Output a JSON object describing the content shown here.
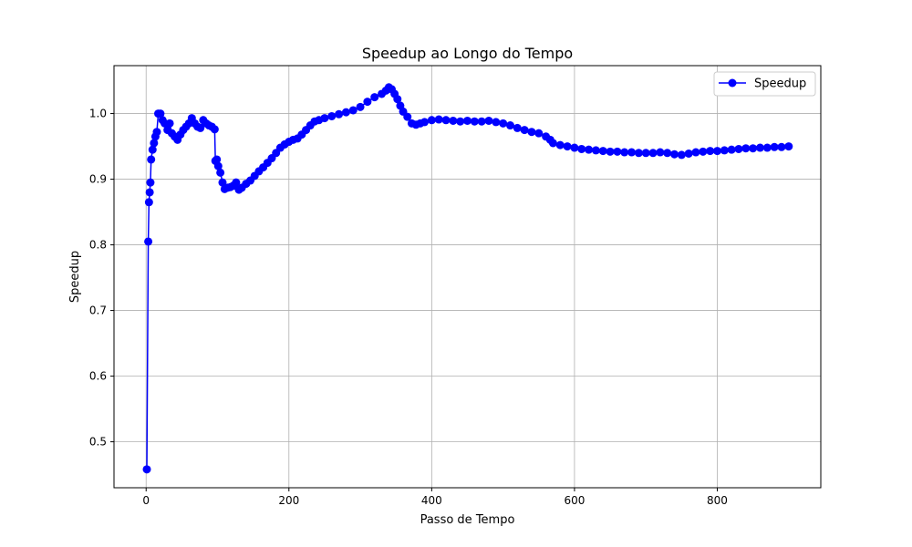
{
  "chart_data": {
    "type": "line",
    "title": "Speedup ao Longo do Tempo",
    "xlabel": "Passo de Tempo",
    "ylabel": "Speedup",
    "xlim": [
      -45,
      945
    ],
    "ylim": [
      0.43,
      1.073
    ],
    "xticks": [
      0,
      200,
      400,
      600,
      800
    ],
    "yticks": [
      0.5,
      0.6,
      0.7,
      0.8,
      0.9,
      1.0
    ],
    "xtick_labels": [
      "0",
      "200",
      "400",
      "600",
      "800"
    ],
    "ytick_labels": [
      "0.5",
      "0.6",
      "0.7",
      "0.8",
      "0.9",
      "1.0"
    ],
    "grid": true,
    "legend_position": "top-right",
    "series": [
      {
        "name": "Speedup",
        "color": "#0000ff",
        "marker": "circle",
        "x": [
          1,
          3,
          4,
          5,
          6,
          7,
          9,
          11,
          13,
          15,
          17,
          20,
          23,
          26,
          30,
          33,
          36,
          40,
          44,
          48,
          52,
          56,
          60,
          64,
          68,
          72,
          76,
          80,
          84,
          88,
          92,
          96,
          97,
          99,
          101,
          104,
          107,
          110,
          114,
          118,
          122,
          126,
          130,
          134,
          140,
          146,
          152,
          158,
          164,
          170,
          176,
          182,
          188,
          194,
          200,
          206,
          212,
          218,
          224,
          230,
          236,
          242,
          250,
          260,
          270,
          280,
          290,
          300,
          310,
          320,
          330,
          336,
          340,
          344,
          348,
          352,
          356,
          360,
          366,
          372,
          378,
          384,
          390,
          400,
          410,
          420,
          430,
          440,
          450,
          460,
          470,
          480,
          490,
          500,
          510,
          520,
          530,
          540,
          550,
          560,
          566,
          570,
          580,
          590,
          600,
          610,
          620,
          630,
          640,
          650,
          660,
          670,
          680,
          690,
          700,
          710,
          720,
          730,
          740,
          750,
          760,
          770,
          780,
          790,
          800,
          810,
          820,
          830,
          840,
          850,
          860,
          870,
          880,
          890,
          900
        ],
        "y": [
          0.458,
          0.805,
          0.865,
          0.88,
          0.895,
          0.93,
          0.945,
          0.955,
          0.965,
          0.972,
          1.0,
          1.0,
          0.99,
          0.985,
          0.975,
          0.985,
          0.97,
          0.965,
          0.96,
          0.968,
          0.975,
          0.98,
          0.985,
          0.993,
          0.985,
          0.98,
          0.978,
          0.99,
          0.985,
          0.982,
          0.98,
          0.976,
          0.928,
          0.93,
          0.92,
          0.91,
          0.895,
          0.885,
          0.887,
          0.888,
          0.89,
          0.895,
          0.884,
          0.887,
          0.893,
          0.898,
          0.905,
          0.912,
          0.918,
          0.925,
          0.932,
          0.94,
          0.948,
          0.953,
          0.957,
          0.96,
          0.962,
          0.968,
          0.975,
          0.982,
          0.988,
          0.99,
          0.993,
          0.996,
          0.999,
          1.002,
          1.005,
          1.01,
          1.018,
          1.025,
          1.03,
          1.035,
          1.04,
          1.037,
          1.03,
          1.022,
          1.012,
          1.003,
          0.995,
          0.985,
          0.983,
          0.985,
          0.987,
          0.99,
          0.991,
          0.99,
          0.989,
          0.988,
          0.989,
          0.988,
          0.988,
          0.989,
          0.987,
          0.985,
          0.982,
          0.978,
          0.975,
          0.972,
          0.97,
          0.965,
          0.96,
          0.955,
          0.952,
          0.95,
          0.948,
          0.946,
          0.945,
          0.944,
          0.943,
          0.942,
          0.942,
          0.941,
          0.941,
          0.94,
          0.94,
          0.94,
          0.941,
          0.94,
          0.938,
          0.937,
          0.939,
          0.941,
          0.942,
          0.943,
          0.943,
          0.944,
          0.945,
          0.946,
          0.947,
          0.947,
          0.948,
          0.948,
          0.949,
          0.949,
          0.95
        ]
      }
    ]
  }
}
